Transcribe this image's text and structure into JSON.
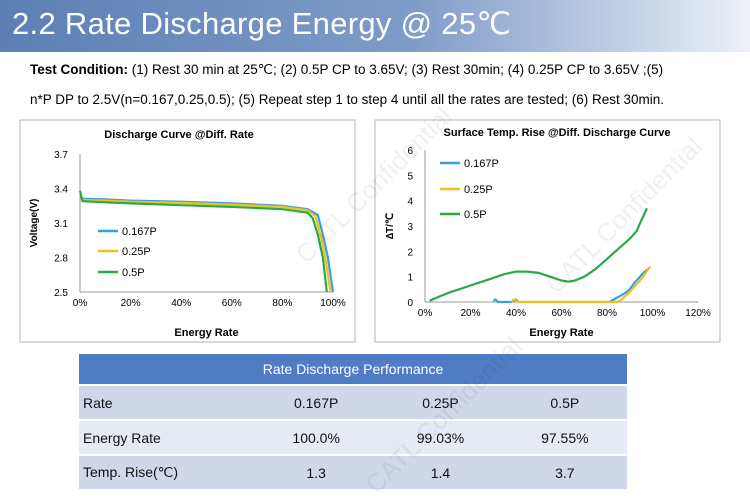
{
  "header": {
    "title": "2.2 Rate Discharge Energy @ 25℃"
  },
  "test_condition": {
    "label": "Test Condition:",
    "line1": "(1) Rest 30 min at 25℃; (2) 0.5P CP to 3.65V; (3) Rest 30min; (4) 0.25P CP to 3.65V ;(5)",
    "line2": "n*P DP to 2.5V(n=0.167,0.25,0.5); (5) Repeat step 1 to step 4 until all the rates are tested; (6) Rest 30min."
  },
  "colors": {
    "s0167": "#3aa0dc",
    "s025": "#f2bf1d",
    "s05": "#27ab48",
    "table_header": "#4f7dc5"
  },
  "chart_data": [
    {
      "type": "line",
      "title": "Discharge Curve @Diff. Rate",
      "xlabel": "Energy Rate",
      "ylabel": "Voltage(V)",
      "xlim": [
        0,
        100
      ],
      "ylim": [
        2.5,
        3.7
      ],
      "xticks": [
        "0%",
        "20%",
        "40%",
        "60%",
        "80%",
        "100%"
      ],
      "yticks": [
        "2.5",
        "2.8",
        "3.1",
        "3.4",
        "3.7"
      ],
      "legend": "left",
      "grid": false,
      "series": [
        {
          "name": "0.167P",
          "color": "#3aa0dc",
          "points": [
            [
              0,
              3.32
            ],
            [
              2,
              3.31
            ],
            [
              10,
              3.305
            ],
            [
              20,
              3.295
            ],
            [
              40,
              3.285
            ],
            [
              60,
              3.27
            ],
            [
              80,
              3.25
            ],
            [
              90,
              3.22
            ],
            [
              94,
              3.17
            ],
            [
              96,
              3.0
            ],
            [
              98,
              2.8
            ],
            [
              100,
              2.5
            ]
          ]
        },
        {
          "name": "0.25P",
          "color": "#f2bf1d",
          "points": [
            [
              0,
              3.31
            ],
            [
              2,
              3.3
            ],
            [
              10,
              3.295
            ],
            [
              20,
              3.285
            ],
            [
              40,
              3.275
            ],
            [
              60,
              3.26
            ],
            [
              80,
              3.24
            ],
            [
              90,
              3.21
            ],
            [
              93,
              3.16
            ],
            [
              95,
              3.0
            ],
            [
              97,
              2.8
            ],
            [
              99.03,
              2.5
            ]
          ]
        },
        {
          "name": "0.5P",
          "color": "#27ab48",
          "points": [
            [
              0,
              3.38
            ],
            [
              1,
              3.29
            ],
            [
              10,
              3.28
            ],
            [
              20,
              3.27
            ],
            [
              40,
              3.255
            ],
            [
              60,
              3.24
            ],
            [
              80,
              3.22
            ],
            [
              90,
              3.19
            ],
            [
              92,
              3.14
            ],
            [
              94,
              3.0
            ],
            [
              96,
              2.8
            ],
            [
              97.55,
              2.5
            ]
          ]
        }
      ]
    },
    {
      "type": "line",
      "title": "Surface Temp. Rise @Diff. Discharge Curve",
      "xlabel": "Energy Rate",
      "ylabel": "∆T/℃",
      "xlim": [
        0,
        120
      ],
      "ylim": [
        0,
        6
      ],
      "xticks": [
        "0%",
        "20%",
        "40%",
        "60%",
        "80%",
        "100%",
        "120%"
      ],
      "yticks": [
        "0",
        "1",
        "2",
        "3",
        "4",
        "5",
        "6"
      ],
      "legend": "left",
      "grid": false,
      "series": [
        {
          "name": "0.167P",
          "color": "#3aa0dc",
          "points": [
            [
              30,
              0.05
            ],
            [
              31,
              0.1
            ],
            [
              32,
              0
            ],
            [
              38,
              0
            ],
            [
              39,
              0.05
            ],
            [
              40,
              0.1
            ],
            [
              41,
              0
            ],
            [
              81,
              0
            ],
            [
              83,
              0.1
            ],
            [
              85,
              0.2
            ],
            [
              88,
              0.35
            ],
            [
              90,
              0.5
            ],
            [
              92,
              0.75
            ],
            [
              94,
              0.95
            ],
            [
              96,
              1.15
            ],
            [
              98,
              1.3
            ]
          ]
        },
        {
          "name": "0.25P",
          "color": "#f2bf1d",
          "points": [
            [
              38,
              0
            ],
            [
              39,
              0.1
            ],
            [
              40,
              0.05
            ],
            [
              41,
              0
            ],
            [
              85,
              0
            ],
            [
              87,
              0.15
            ],
            [
              89,
              0.3
            ],
            [
              91,
              0.5
            ],
            [
              93,
              0.7
            ],
            [
              95,
              0.9
            ],
            [
              97,
              1.15
            ],
            [
              99,
              1.4
            ]
          ]
        },
        {
          "name": "0.5P",
          "color": "#27ab48",
          "points": [
            [
              2,
              0.05
            ],
            [
              6,
              0.2
            ],
            [
              10,
              0.35
            ],
            [
              15,
              0.5
            ],
            [
              20,
              0.65
            ],
            [
              25,
              0.8
            ],
            [
              30,
              0.95
            ],
            [
              35,
              1.1
            ],
            [
              40,
              1.2
            ],
            [
              45,
              1.2
            ],
            [
              50,
              1.15
            ],
            [
              55,
              1.0
            ],
            [
              60,
              0.85
            ],
            [
              63,
              0.8
            ],
            [
              66,
              0.85
            ],
            [
              70,
              1.0
            ],
            [
              75,
              1.3
            ],
            [
              80,
              1.7
            ],
            [
              85,
              2.1
            ],
            [
              90,
              2.5
            ],
            [
              93,
              2.8
            ],
            [
              95,
              3.2
            ],
            [
              97.55,
              3.7
            ]
          ]
        }
      ]
    }
  ],
  "perf_table": {
    "title": "Rate Discharge Performance",
    "rows": [
      {
        "label": "Rate",
        "values": [
          "0.167P",
          "0.25P",
          "0.5P"
        ]
      },
      {
        "label": "Energy Rate",
        "values": [
          "100.0%",
          "99.03%",
          "97.55%"
        ]
      },
      {
        "label": "Temp. Rise(℃)",
        "values": [
          "1.3",
          "1.4",
          "3.7"
        ]
      }
    ]
  },
  "watermarks": [
    "CATL Confidential",
    "CATL Confidential",
    "CATL Confidential"
  ]
}
